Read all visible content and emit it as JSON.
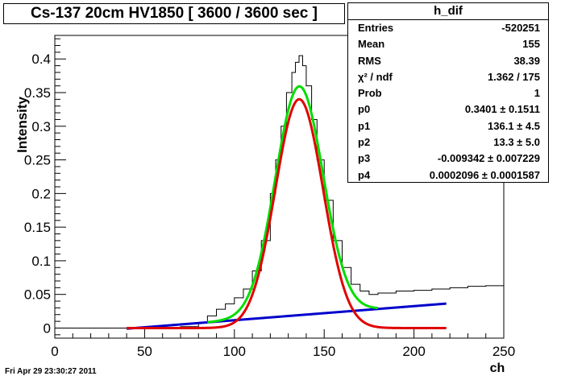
{
  "title": "Cs-137 20cm HV1850 [ 3600 / 3600 sec ]",
  "footer_timestamp": "Fri Apr 29 23:30:27 2011",
  "stats": {
    "name": "h_dif",
    "rows": [
      {
        "key": "Entries",
        "value": "-520251"
      },
      {
        "key": "Mean",
        "value": "155"
      },
      {
        "key": "RMS",
        "value": "38.39"
      },
      {
        "key": "χ² / ndf",
        "value": "1.362 / 175"
      },
      {
        "key": "Prob",
        "value": "1"
      },
      {
        "key": "p0",
        "value": "0.3401 ± 0.1511"
      },
      {
        "key": "p1",
        "value": "136.1 ± 4.5"
      },
      {
        "key": "p2",
        "value": "13.3 ± 5.0"
      },
      {
        "key": "p3",
        "value": "-0.009342 ± 0.007229"
      },
      {
        "key": "p4",
        "value": "0.0002096 ± 0.0001587"
      }
    ]
  },
  "chart_data": {
    "type": "line",
    "title": "Cs-137 20cm HV1850 [ 3600 / 3600 sec ]",
    "xlabel": "ch",
    "ylabel": "Intensity",
    "xlim": [
      0,
      250
    ],
    "ylim": [
      -0.015,
      0.435
    ],
    "xticks": [
      0,
      50,
      100,
      150,
      200,
      250
    ],
    "yticks": [
      0,
      0.05,
      0.1,
      0.15,
      0.2,
      0.25,
      0.3,
      0.35,
      0.4
    ],
    "colors": {
      "histogram": "#000000",
      "total_fit": "#00dd00",
      "gaussian": "#e00000",
      "background": "#0000cc"
    },
    "histogram": {
      "x": [
        0,
        40,
        70,
        80,
        85,
        90,
        95,
        100,
        105,
        110,
        115,
        120,
        123,
        126,
        129,
        132,
        134,
        136,
        138,
        140,
        143,
        146,
        150,
        155,
        160,
        165,
        170,
        175,
        180,
        190,
        200,
        210,
        220,
        230,
        240,
        250
      ],
      "y": [
        0,
        0,
        0.002,
        0.008,
        0.018,
        0.028,
        0.036,
        0.045,
        0.058,
        0.085,
        0.13,
        0.2,
        0.25,
        0.3,
        0.35,
        0.38,
        0.395,
        0.405,
        0.39,
        0.36,
        0.31,
        0.25,
        0.19,
        0.13,
        0.09,
        0.065,
        0.055,
        0.05,
        0.052,
        0.055,
        0.056,
        0.058,
        0.06,
        0.062,
        0.063,
        0.064
      ]
    },
    "fits": {
      "gaussian": {
        "p0": 0.3401,
        "p1": 136.1,
        "p2": 13.3,
        "range": [
          40,
          218
        ]
      },
      "background": {
        "p3": -0.009342,
        "p4": 0.0002096,
        "range": [
          40,
          218
        ]
      },
      "total": {
        "range": [
          85,
          180
        ]
      }
    }
  }
}
